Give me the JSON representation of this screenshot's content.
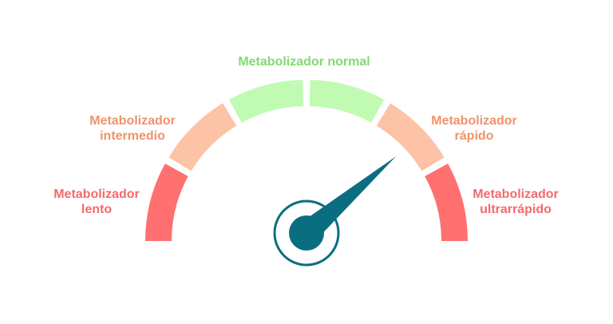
{
  "labels": {
    "lento": [
      "Metabolizador",
      "lento"
    ],
    "intermedio": [
      "Metabolizador",
      "intermedio"
    ],
    "normal": [
      "Metabolizador normal"
    ],
    "rapido": [
      "Metabolizador",
      "rápido"
    ],
    "ultrarrapido": [
      "Metabolizador",
      "ultrarrápido"
    ]
  }
}
